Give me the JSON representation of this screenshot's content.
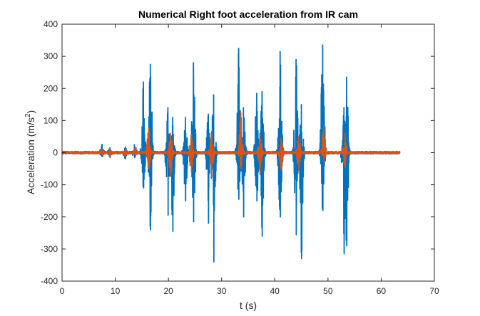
{
  "chart_data": {
    "type": "line",
    "title": "Numerical Right foot acceleration from IR cam",
    "xlabel": "t (s)",
    "ylabel": "Acceleration (m/s",
    "ylabel_superscript": "2",
    "ylabel_suffix": ")",
    "xlim": [
      0,
      70
    ],
    "ylim": [
      -400,
      400
    ],
    "xticks": [
      0,
      10,
      20,
      30,
      40,
      50,
      60,
      70
    ],
    "yticks": [
      -400,
      -300,
      -200,
      -100,
      0,
      100,
      200,
      300,
      400
    ],
    "xtick_labels": [
      "0",
      "10",
      "20",
      "30",
      "40",
      "50",
      "60",
      "70"
    ],
    "ytick_labels": [
      "-400",
      "-300",
      "-200",
      "-100",
      "0",
      "100",
      "200",
      "300",
      "400"
    ],
    "grid": false,
    "legend": "none",
    "series": [
      {
        "color": "#0072BD",
        "x_range": [
          0,
          63.5
        ],
        "baseline_noise": 4,
        "bursts": [
          {
            "t": 7.5,
            "max": 25,
            "min": -12
          },
          {
            "t": 9.0,
            "max": 15,
            "min": -15
          },
          {
            "t": 11.9,
            "max": 18,
            "min": -18
          },
          {
            "t": 13.6,
            "max": 25,
            "min": -15
          },
          {
            "t": 15.3,
            "max": 220,
            "min": -110
          },
          {
            "t": 16.6,
            "max": 275,
            "min": -240
          },
          {
            "t": 19.9,
            "max": 140,
            "min": -195
          },
          {
            "t": 20.8,
            "max": 110,
            "min": -245
          },
          {
            "t": 23.2,
            "max": 110,
            "min": -150
          },
          {
            "t": 24.7,
            "max": 280,
            "min": -215
          },
          {
            "t": 27.5,
            "max": 120,
            "min": -220
          },
          {
            "t": 28.5,
            "max": 180,
            "min": -340
          },
          {
            "t": 33.2,
            "max": 325,
            "min": -145
          },
          {
            "t": 34.1,
            "max": 140,
            "min": -200
          },
          {
            "t": 36.6,
            "max": 185,
            "min": -150
          },
          {
            "t": 37.6,
            "max": 190,
            "min": -260
          },
          {
            "t": 41.0,
            "max": 315,
            "min": -200
          },
          {
            "t": 44.0,
            "max": 290,
            "min": -255
          },
          {
            "t": 45.0,
            "max": 150,
            "min": -330
          },
          {
            "t": 49.0,
            "max": 335,
            "min": -180
          },
          {
            "t": 53.0,
            "max": 140,
            "min": -315
          },
          {
            "t": 53.5,
            "max": 235,
            "min": -290
          }
        ]
      },
      {
        "color": "#D95319",
        "x_range": [
          0,
          63.5
        ],
        "baseline_noise": 3,
        "bursts": [
          {
            "t": 7.6,
            "max": 12,
            "min": -8
          },
          {
            "t": 9.0,
            "max": 10,
            "min": -10
          },
          {
            "t": 11.9,
            "max": 10,
            "min": -10
          },
          {
            "t": 13.8,
            "max": 15,
            "min": -10
          },
          {
            "t": 16.3,
            "max": 75,
            "min": -50
          },
          {
            "t": 20.4,
            "max": 60,
            "min": -75
          },
          {
            "t": 24.3,
            "max": 55,
            "min": -60
          },
          {
            "t": 28.1,
            "max": 65,
            "min": -75
          },
          {
            "t": 33.6,
            "max": 125,
            "min": -50
          },
          {
            "t": 37.2,
            "max": 60,
            "min": -65
          },
          {
            "t": 41.2,
            "max": 45,
            "min": -55
          },
          {
            "t": 44.5,
            "max": 50,
            "min": -55
          },
          {
            "t": 49.2,
            "max": 80,
            "min": -30
          },
          {
            "t": 53.2,
            "max": 60,
            "min": -45
          }
        ]
      }
    ]
  }
}
